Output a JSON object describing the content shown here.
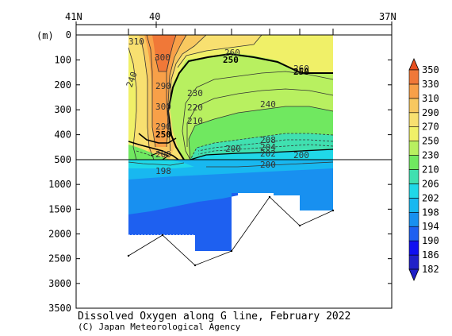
{
  "chart_data": {
    "type": "heatmap",
    "title": "Dissolved Oxygen along G line, February 2022",
    "credit": "(C) Japan Meteorological Agency",
    "ylabel": "(m)",
    "x_ticks": [
      "41N",
      "40",
      "37N"
    ],
    "y_ticks_upper": [
      0,
      100,
      200,
      300,
      400,
      500
    ],
    "y_ticks_lower": [
      1000,
      1500,
      2000,
      2500,
      3000,
      3500
    ],
    "y_break_depth": 500,
    "colorbar": {
      "levels": [
        182,
        186,
        190,
        194,
        198,
        202,
        206,
        210,
        230,
        250,
        270,
        290,
        310,
        330,
        350
      ],
      "colors": [
        "#2020c8",
        "#1010f0",
        "#1e60f0",
        "#1890f0",
        "#18b8f0",
        "#20d8e8",
        "#40e0b0",
        "#70e860",
        "#b8f060",
        "#f0f068",
        "#f8e070",
        "#f8c860",
        "#f8a048",
        "#f07838",
        "#e85020"
      ]
    },
    "contour_labels": [
      {
        "text": "310",
        "bold": false
      },
      {
        "text": "300",
        "bold": false
      },
      {
        "text": "250",
        "bold": true
      },
      {
        "text": "260",
        "bold": false
      },
      {
        "text": "260",
        "bold": false
      },
      {
        "text": "250",
        "bold": true
      },
      {
        "text": "240",
        "bold": false
      },
      {
        "text": "290",
        "bold": false
      },
      {
        "text": "230",
        "bold": false
      },
      {
        "text": "300",
        "bold": false
      },
      {
        "text": "220",
        "bold": false
      },
      {
        "text": "240",
        "bold": false
      },
      {
        "text": "210",
        "bold": false
      },
      {
        "text": "290",
        "bold": false
      },
      {
        "text": "250",
        "bold": true
      },
      {
        "text": "208",
        "bold": false
      },
      {
        "text": "204",
        "bold": false
      },
      {
        "text": "202",
        "bold": false
      },
      {
        "text": "200",
        "bold": false
      },
      {
        "text": "200",
        "bold": false
      },
      {
        "text": "200",
        "bold": false
      },
      {
        "text": "198",
        "bold": false
      },
      {
        "text": "200",
        "bold": false
      }
    ]
  }
}
